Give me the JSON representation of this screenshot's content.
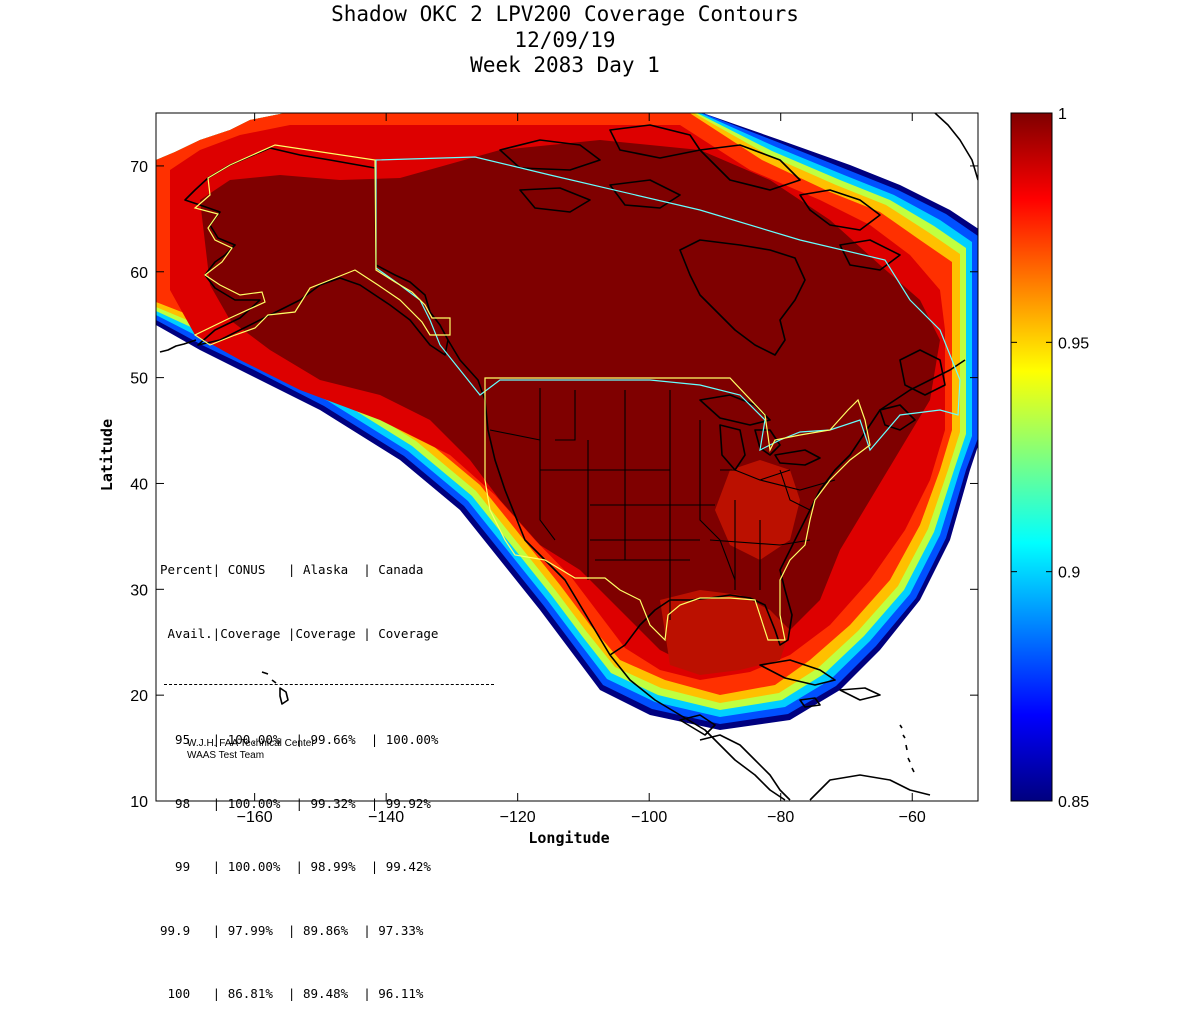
{
  "title": {
    "line1": "Shadow OKC 2 LPV200 Coverage Contours",
    "line2": "12/09/19",
    "line3": "Week 2083 Day 1"
  },
  "axes": {
    "xlabel": "Longitude",
    "ylabel": "Latitude",
    "xlim": [
      -175,
      -50
    ],
    "ylim": [
      10,
      75
    ],
    "xticks": [
      -160,
      -140,
      -120,
      -100,
      -80,
      -60
    ],
    "yticks": [
      10,
      20,
      30,
      40,
      50,
      60,
      70
    ],
    "xtick_labels": [
      "−160",
      "−140",
      "−120",
      "−100",
      "−80",
      "−60"
    ],
    "ytick_labels": [
      "10",
      "20",
      "30",
      "40",
      "50",
      "60",
      "70"
    ]
  },
  "colorbar": {
    "min": 0.85,
    "max": 1,
    "ticks": [
      0.85,
      0.9,
      0.95,
      1
    ],
    "tick_labels": [
      "0.85",
      "0.9",
      "0.95",
      "1"
    ],
    "colormap": "jet",
    "colors": [
      "#00007f",
      "#0000ff",
      "#007fff",
      "#00ffff",
      "#7fff7f",
      "#ffff00",
      "#ff7f00",
      "#ff0000",
      "#7f0000"
    ]
  },
  "stats_table": {
    "header1": "Percent| CONUS   | Alaska  | Canada",
    "header2": " Avail.|Coverage |Coverage | Coverage",
    "rows": [
      "  95   | 100.00%  | 99.66%  | 100.00%",
      "  98   | 100.00%  | 99.32%  | 99.92%",
      "  99   | 100.00%  | 98.99%  | 99.42%",
      "99.9   | 97.99%  | 89.86%  | 97.33%",
      " 100   | 86.81%  | 89.48%  | 96.11%"
    ]
  },
  "credit": {
    "line1": "W.J.H. FAA Technical Center",
    "line2": "WAAS Test Team"
  },
  "colors": {
    "coverage_core": "#7f0000",
    "coverage_ring": "#cc0000",
    "conus_boundary": "#ffff66",
    "canada_boundary": "#66ffff",
    "coastline": "#000000"
  }
}
